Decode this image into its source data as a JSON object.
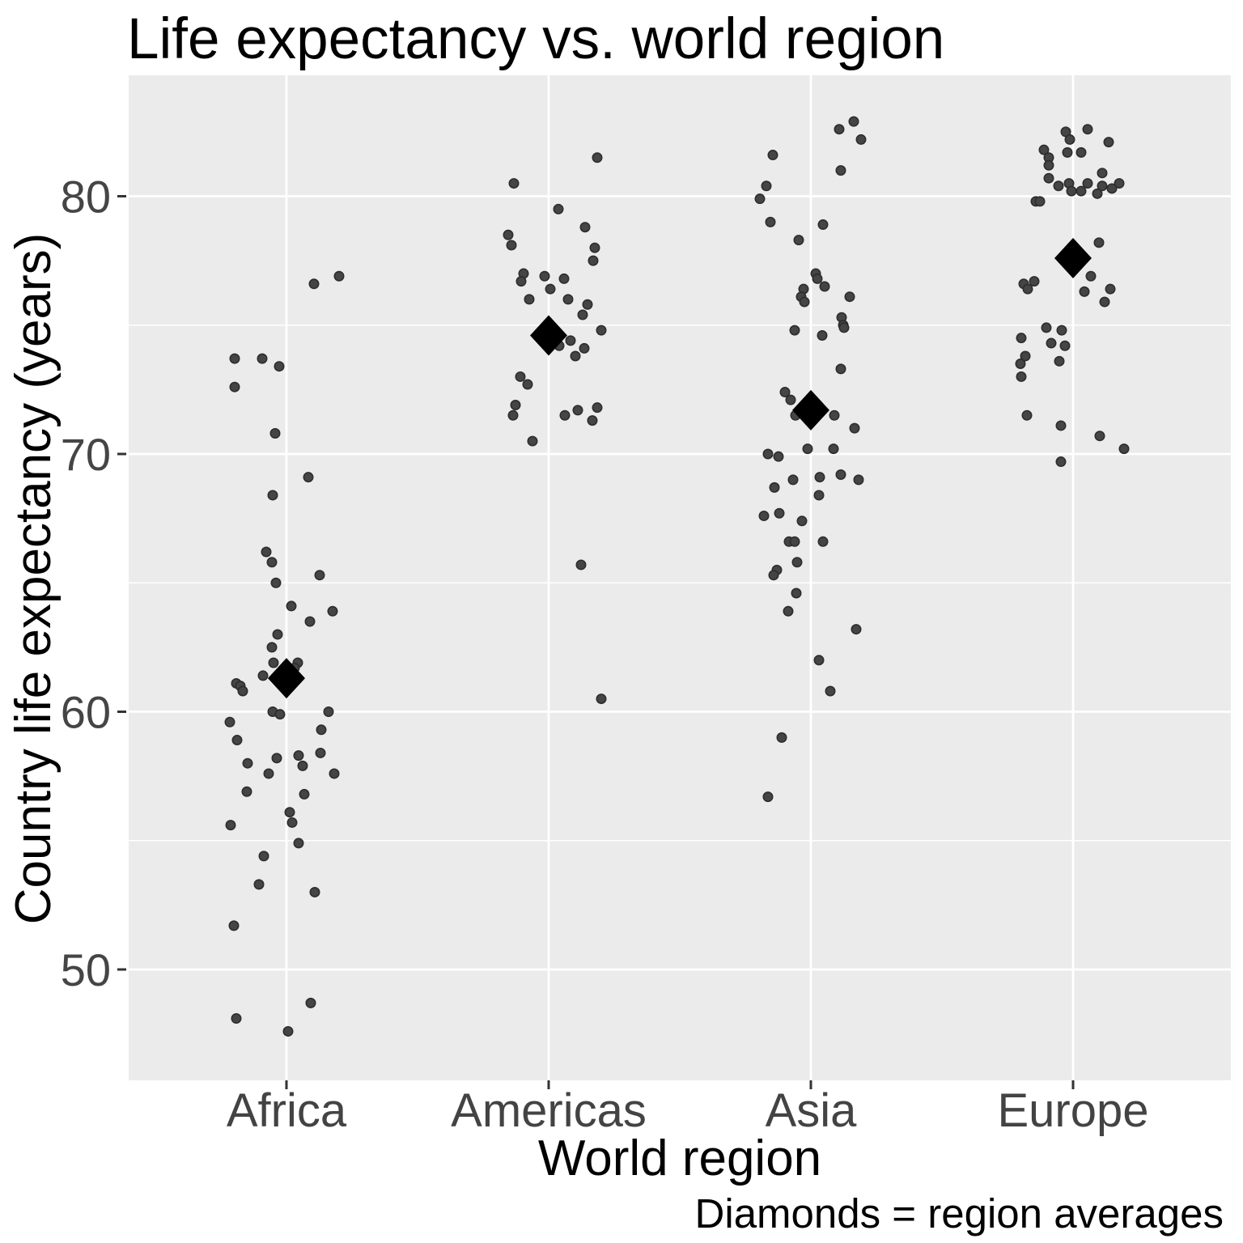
{
  "title": "Life expectancy vs. world region",
  "caption": "Diamonds = region averages",
  "colors": {
    "plot_background": "#EBEBEB",
    "gridline": "#FFFFFF",
    "axis_tick_text": "#454545",
    "axis_tick_mark": "#333333",
    "point_fill": "#454545",
    "point_stroke": "#2d2d2d",
    "diamond": "#000000",
    "title_text": "#000000"
  },
  "chart_data": {
    "type": "scatter",
    "title": "Life expectancy vs. world region",
    "xlabel": "World region",
    "ylabel": "Country life expectancy (years)",
    "caption": "Diamonds = region averages",
    "categories": [
      "Africa",
      "Americas",
      "Asia",
      "Europe"
    ],
    "y_ticks": [
      50,
      60,
      70,
      80
    ],
    "y_minor_ticks": [
      55,
      65,
      75
    ],
    "ylim": [
      45.3,
      84.7
    ],
    "grid": "white major and minor horizontal lines plus white vertical line at each category, on grey panel",
    "legend_position": "none",
    "marker_note": "small grey jittered dots = countries; large black diamonds = region averages",
    "region_averages": [
      61.3,
      74.6,
      71.7,
      77.6
    ],
    "jitter_units": "pixel offset from category center on 1536px-wide canvas",
    "series": [
      {
        "name": "Africa",
        "points": [
          [
            65,
            76.9
          ],
          [
            34,
            76.6
          ],
          [
            -64,
            73.7
          ],
          [
            -30,
            73.7
          ],
          [
            -9,
            73.4
          ],
          [
            -64,
            72.6
          ],
          [
            -14,
            70.8
          ],
          [
            27,
            69.1
          ],
          [
            -17,
            68.4
          ],
          [
            -25,
            66.2
          ],
          [
            -18,
            65.8
          ],
          [
            41,
            65.3
          ],
          [
            -13,
            65.0
          ],
          [
            6,
            64.1
          ],
          [
            57,
            63.9
          ],
          [
            29,
            63.5
          ],
          [
            -11,
            63.0
          ],
          [
            -18,
            62.5
          ],
          [
            -16,
            61.9
          ],
          [
            14,
            61.9
          ],
          [
            10,
            61.7
          ],
          [
            -29,
            61.4
          ],
          [
            -62,
            61.1
          ],
          [
            -57,
            61.0
          ],
          [
            -54,
            60.8
          ],
          [
            -17,
            60.0
          ],
          [
            -8,
            59.9
          ],
          [
            52,
            60.0
          ],
          [
            -70,
            59.6
          ],
          [
            43,
            59.3
          ],
          [
            -61,
            58.9
          ],
          [
            42,
            58.4
          ],
          [
            15,
            58.3
          ],
          [
            -48,
            58.0
          ],
          [
            -12,
            58.2
          ],
          [
            20,
            57.9
          ],
          [
            -22,
            57.6
          ],
          [
            59,
            57.6
          ],
          [
            -49,
            56.9
          ],
          [
            22,
            56.8
          ],
          [
            4,
            56.1
          ],
          [
            7,
            55.7
          ],
          [
            -69,
            55.6
          ],
          [
            15,
            54.9
          ],
          [
            -28,
            54.4
          ],
          [
            -34,
            53.3
          ],
          [
            35,
            53.0
          ],
          [
            -65,
            51.7
          ],
          [
            30,
            48.7
          ],
          [
            -62,
            48.1
          ],
          [
            2,
            47.6
          ]
        ]
      },
      {
        "name": "Americas",
        "points": [
          [
            60,
            81.5
          ],
          [
            -43,
            80.5
          ],
          [
            12,
            79.5
          ],
          [
            45,
            78.8
          ],
          [
            -50,
            78.5
          ],
          [
            -46,
            78.1
          ],
          [
            57,
            78.0
          ],
          [
            55,
            77.5
          ],
          [
            -31,
            77.0
          ],
          [
            -5,
            76.9
          ],
          [
            -34,
            76.7
          ],
          [
            19,
            76.8
          ],
          [
            2,
            76.4
          ],
          [
            -24,
            76.0
          ],
          [
            24,
            76.0
          ],
          [
            48,
            75.8
          ],
          [
            42,
            75.4
          ],
          [
            65,
            74.8
          ],
          [
            27,
            74.4
          ],
          [
            13,
            74.2
          ],
          [
            44,
            74.1
          ],
          [
            33,
            73.8
          ],
          [
            -35,
            73.0
          ],
          [
            -26,
            72.7
          ],
          [
            -41,
            71.9
          ],
          [
            -44,
            71.5
          ],
          [
            36,
            71.7
          ],
          [
            60,
            71.8
          ],
          [
            20,
            71.5
          ],
          [
            54,
            71.3
          ],
          [
            -20,
            70.5
          ],
          [
            40,
            65.7
          ],
          [
            65,
            60.5
          ]
        ]
      },
      {
        "name": "Asia",
        "points": [
          [
            53,
            82.9
          ],
          [
            35,
            82.6
          ],
          [
            62,
            82.2
          ],
          [
            -47,
            81.6
          ],
          [
            37,
            81.0
          ],
          [
            -55,
            80.4
          ],
          [
            -63,
            79.9
          ],
          [
            -50,
            79.0
          ],
          [
            15,
            78.9
          ],
          [
            -15,
            78.3
          ],
          [
            6,
            77.0
          ],
          [
            8,
            76.8
          ],
          [
            17,
            76.5
          ],
          [
            -9,
            76.4
          ],
          [
            -12,
            76.1
          ],
          [
            48,
            76.1
          ],
          [
            -8,
            75.9
          ],
          [
            38,
            75.3
          ],
          [
            40,
            75.0
          ],
          [
            41,
            74.9
          ],
          [
            -20,
            74.8
          ],
          [
            14,
            74.6
          ],
          [
            37,
            73.3
          ],
          [
            -32,
            72.4
          ],
          [
            -25,
            72.1
          ],
          [
            -19,
            71.5
          ],
          [
            29,
            71.5
          ],
          [
            54,
            71.0
          ],
          [
            -4,
            70.2
          ],
          [
            28,
            70.2
          ],
          [
            -53,
            70.0
          ],
          [
            -40,
            69.9
          ],
          [
            11,
            69.1
          ],
          [
            37,
            69.2
          ],
          [
            59,
            69.0
          ],
          [
            -22,
            69.0
          ],
          [
            -45,
            68.7
          ],
          [
            10,
            68.4
          ],
          [
            -58,
            67.6
          ],
          [
            -39,
            67.7
          ],
          [
            -11,
            67.4
          ],
          [
            -27,
            66.6
          ],
          [
            -20,
            66.6
          ],
          [
            15,
            66.6
          ],
          [
            -17,
            65.8
          ],
          [
            -42,
            65.5
          ],
          [
            -46,
            65.3
          ],
          [
            -18,
            64.6
          ],
          [
            -28,
            63.9
          ],
          [
            56,
            63.2
          ],
          [
            10,
            62.0
          ],
          [
            24,
            60.8
          ],
          [
            -36,
            59.0
          ],
          [
            -53,
            56.7
          ]
        ]
      },
      {
        "name": "Europe",
        "points": [
          [
            18,
            82.6
          ],
          [
            -9,
            82.5
          ],
          [
            -4,
            82.2
          ],
          [
            44,
            82.1
          ],
          [
            -36,
            81.8
          ],
          [
            -7,
            81.7
          ],
          [
            10,
            81.7
          ],
          [
            -30,
            81.5
          ],
          [
            -30,
            81.2
          ],
          [
            36,
            80.9
          ],
          [
            -30,
            80.7
          ],
          [
            -18,
            80.4
          ],
          [
            -5,
            80.5
          ],
          [
            18,
            80.5
          ],
          [
            36,
            80.4
          ],
          [
            57,
            80.5
          ],
          [
            48,
            80.3
          ],
          [
            -2,
            80.2
          ],
          [
            10,
            80.2
          ],
          [
            30,
            80.1
          ],
          [
            -46,
            79.8
          ],
          [
            -41,
            79.8
          ],
          [
            32,
            78.2
          ],
          [
            22,
            76.9
          ],
          [
            -48,
            76.7
          ],
          [
            -61,
            76.6
          ],
          [
            -56,
            76.4
          ],
          [
            14,
            76.3
          ],
          [
            46,
            76.4
          ],
          [
            39,
            75.9
          ],
          [
            -33,
            74.9
          ],
          [
            -14,
            74.8
          ],
          [
            -64,
            74.5
          ],
          [
            -27,
            74.3
          ],
          [
            -10,
            74.2
          ],
          [
            -59,
            73.8
          ],
          [
            -17,
            73.6
          ],
          [
            -65,
            73.5
          ],
          [
            -64,
            73.0
          ],
          [
            -57,
            71.5
          ],
          [
            -15,
            71.1
          ],
          [
            33,
            70.7
          ],
          [
            63,
            70.2
          ],
          [
            -15,
            69.7
          ]
        ]
      }
    ]
  }
}
